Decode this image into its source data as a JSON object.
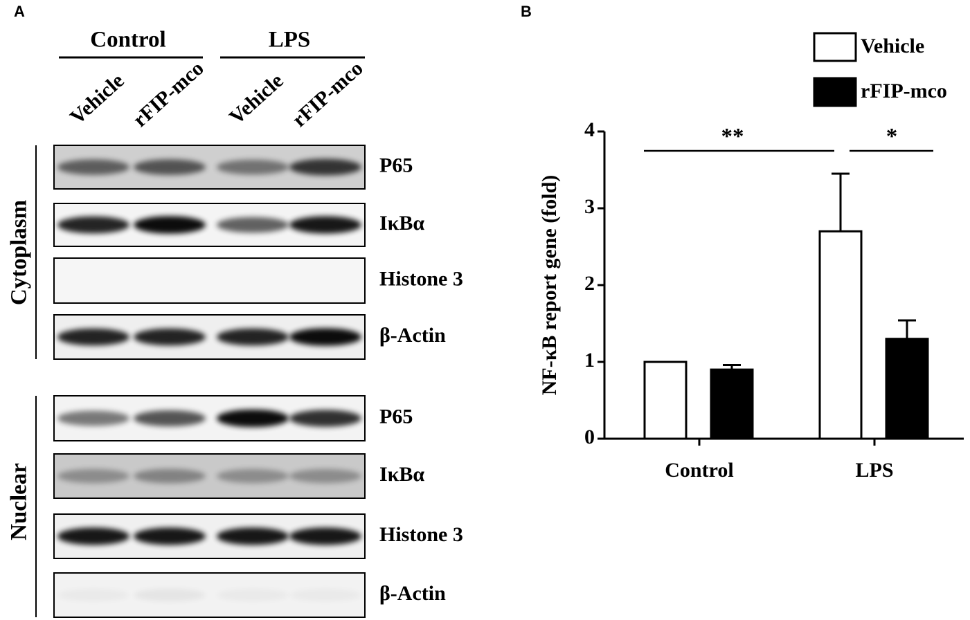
{
  "panel_a": {
    "label": "A",
    "groups": [
      "Control",
      "LPS"
    ],
    "lanes": [
      "Vehicle",
      "rFIP-mco",
      "Vehicle",
      "rFIP-mco"
    ],
    "sections": [
      {
        "name": "Cytoplasm",
        "blots": [
          "P65",
          "IκBα",
          "Histone 3",
          "β-Actin"
        ]
      },
      {
        "name": "Nuclear",
        "blots": [
          "P65",
          "IκBα",
          "Histone 3",
          "β-Actin"
        ]
      }
    ]
  },
  "chart_data": {
    "type": "bar",
    "panel_label": "B",
    "y_label": "NF-κB report gene (fold)",
    "categories": [
      "Control",
      "LPS"
    ],
    "series": [
      {
        "name": "Vehicle",
        "color": "#ffffff",
        "values": [
          1.0,
          2.7
        ],
        "errors": [
          0,
          0.75
        ]
      },
      {
        "name": "rFIP-mco",
        "color": "#000000",
        "values": [
          0.9,
          1.3
        ],
        "errors": [
          0.06,
          0.24
        ]
      }
    ],
    "ylim": [
      0,
      4
    ],
    "yticks": [
      0,
      1,
      2,
      3,
      4
    ],
    "annotations": [
      "**",
      "*"
    ]
  }
}
